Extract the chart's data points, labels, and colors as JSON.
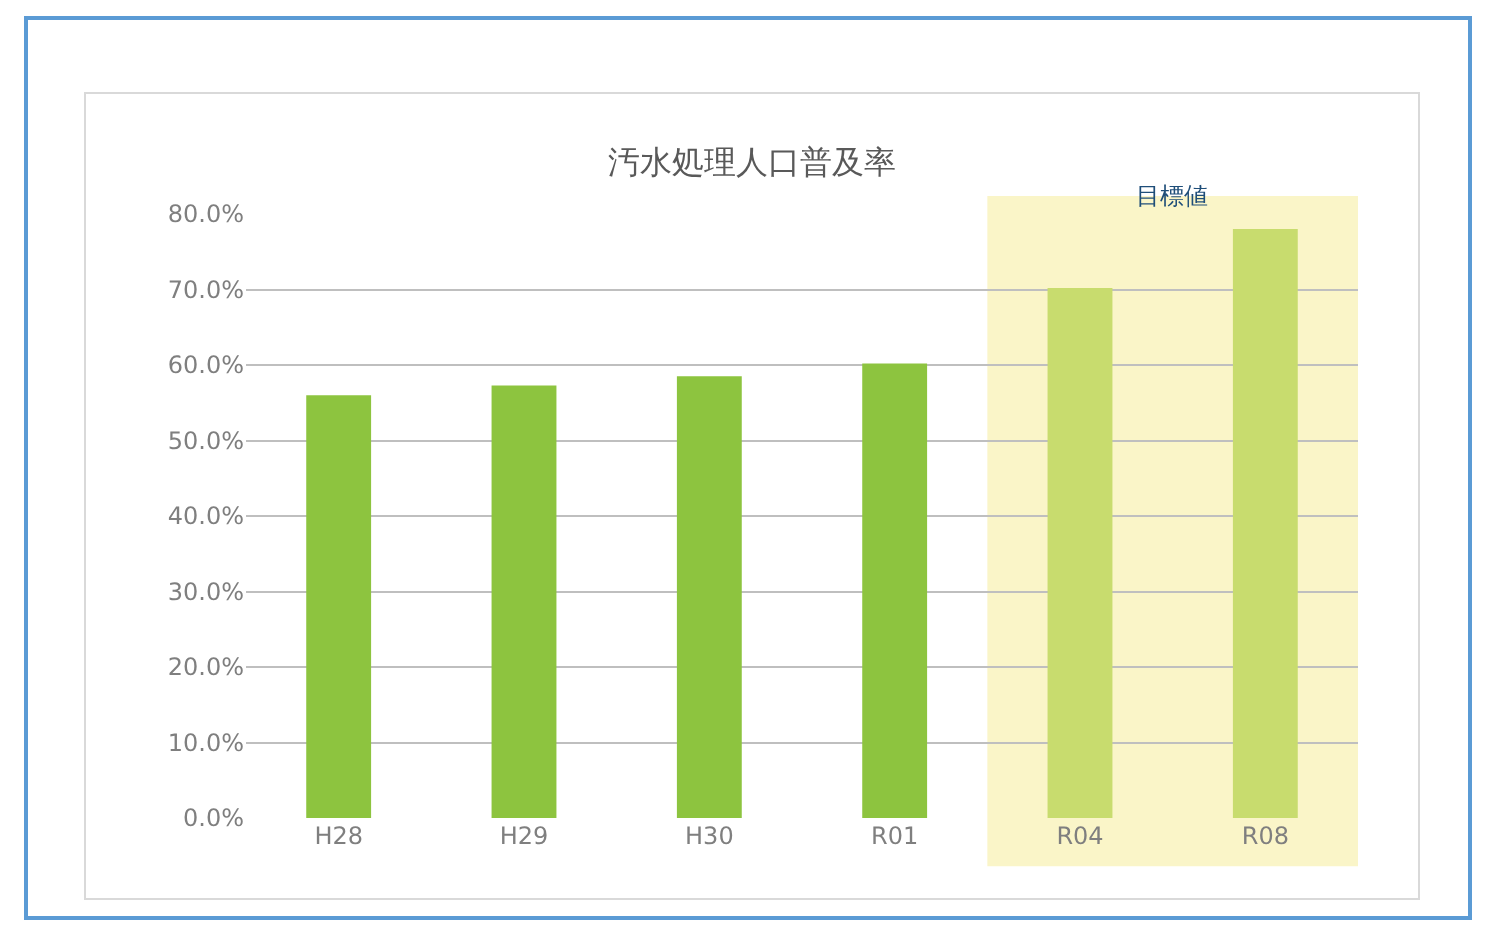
{
  "chart_data": {
    "type": "bar",
    "title": "汚水処理人口普及率",
    "categories": [
      "H28",
      "H29",
      "H30",
      "R01",
      "R04",
      "R08"
    ],
    "values": [
      56,
      57.3,
      58.5,
      60.2,
      70.2,
      78
    ],
    "colors": [
      "#8dc43f",
      "#8dc43f",
      "#8dc43f",
      "#8dc43f",
      "#c8dc6e",
      "#c8dc6e"
    ],
    "ylim": [
      0,
      80
    ],
    "yticks": [
      {
        "value": 0,
        "label": "0.0%"
      },
      {
        "value": 10,
        "label": "10.0%"
      },
      {
        "value": 20,
        "label": "20.0%"
      },
      {
        "value": 30,
        "label": "30.0%"
      },
      {
        "value": 40,
        "label": "40.0%"
      },
      {
        "value": 50,
        "label": "50.0%"
      },
      {
        "value": 60,
        "label": "60.0%"
      },
      {
        "value": 70,
        "label": "70.0%"
      },
      {
        "value": 80,
        "label": "80.0%"
      }
    ],
    "bands": [
      {
        "axis": "x",
        "from": "R04",
        "to": "R08",
        "label": "目標値",
        "color": "#faf5c8"
      }
    ],
    "grid": "y"
  }
}
